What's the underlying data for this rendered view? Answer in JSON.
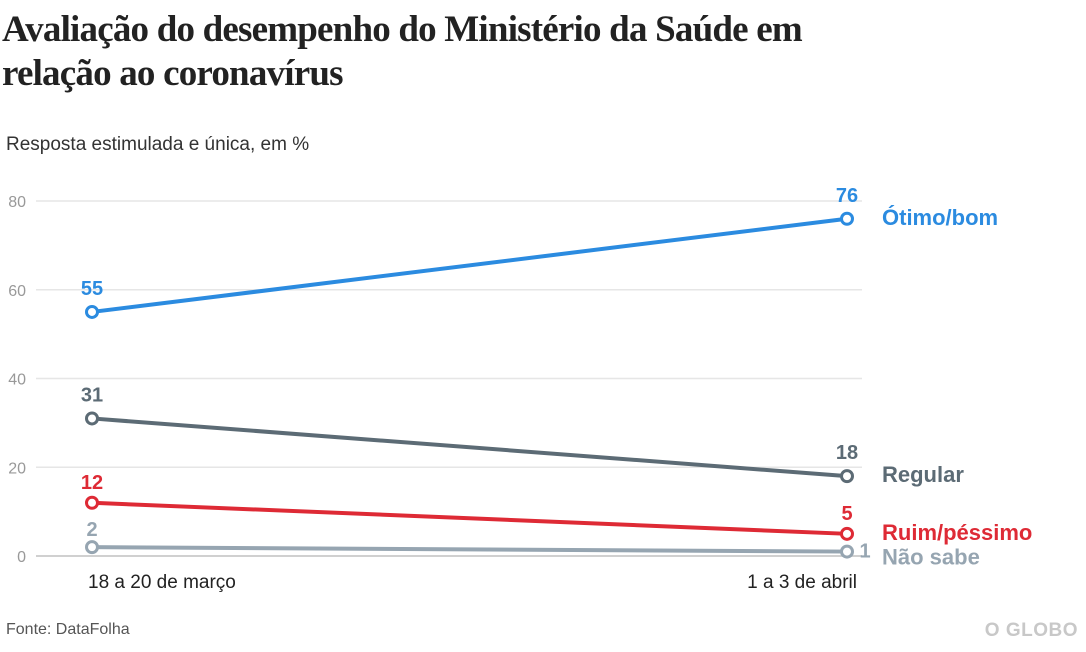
{
  "title": "Avaliação do desempenho do Ministério da Saúde em relação ao coronavírus",
  "subtitle": "Resposta estimulada e única, em %",
  "source": "Fonte: DataFolha",
  "logo": "O GLOBO",
  "chart_data": {
    "type": "line",
    "title": "Avaliação do desempenho do Ministério da Saúde em relação ao coronavírus",
    "subtitle": "Resposta estimulada e única, em %",
    "categories": [
      "18 a 20 de março",
      "1 a 3 de abril"
    ],
    "ylim": [
      0,
      80
    ],
    "yticks": [
      0,
      20,
      40,
      60,
      80
    ],
    "grid": true,
    "legend": "right, inline labels at line ends",
    "series": [
      {
        "name": "Ótimo/bom",
        "values": [
          55,
          76
        ],
        "color": "#2b8be0"
      },
      {
        "name": "Regular",
        "values": [
          31,
          18
        ],
        "color": "#5c6b75"
      },
      {
        "name": "Ruim/péssimo",
        "values": [
          12,
          5
        ],
        "color": "#de2a35"
      },
      {
        "name": "Não sabe",
        "values": [
          2,
          1
        ],
        "color": "#96a5b1"
      }
    ]
  }
}
